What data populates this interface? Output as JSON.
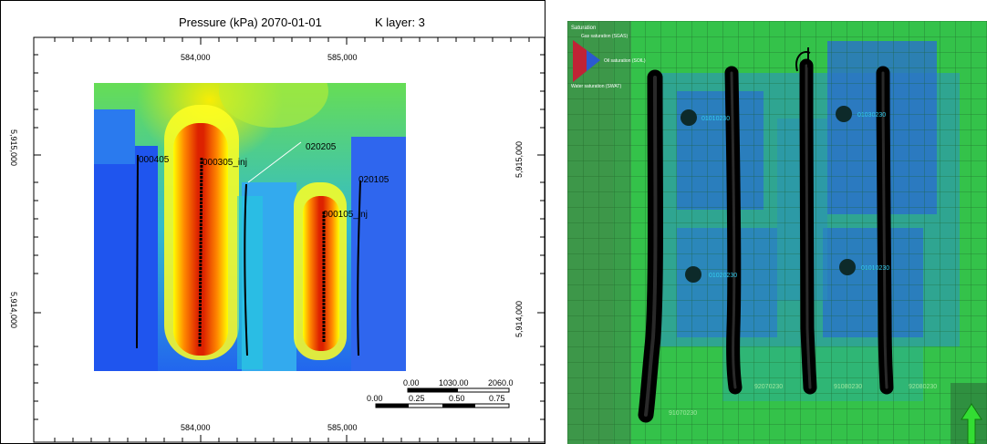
{
  "left": {
    "title": "Pressure (kPa) 2070-01-01",
    "layer": "K layer: 3",
    "x_ticks_top": [
      "584,000",
      "585,000"
    ],
    "x_ticks_bottom": [
      "584,000",
      "585,000"
    ],
    "y_ticks_left": [
      "5,915,000",
      "5,914,000"
    ],
    "y_ticks_right": [
      "5,915,000",
      "5,914,000"
    ],
    "wells": [
      "000405",
      "000305_inj",
      "020205",
      "020105",
      "000105_inj"
    ],
    "scale_top": [
      "0.00",
      "1030.00",
      "2060.0"
    ],
    "scale_bottom": [
      "0.00",
      "0.25",
      "0.50",
      "0.75"
    ]
  },
  "right": {
    "legend_title": "Saturation",
    "legend_gas": "Gas saturation (SGAS)",
    "legend_oil": "Oil saturation (SOIL)",
    "legend_water": "Water saturation (SWAT)",
    "wells": [
      "01010230",
      "01030230",
      "01020230",
      "01010230",
      "91070230",
      "92070230",
      "91080230",
      "92080230"
    ],
    "colors": {
      "green": "#33cc44",
      "blue": "#2277cc",
      "dark_green": "#3a9a48"
    }
  }
}
